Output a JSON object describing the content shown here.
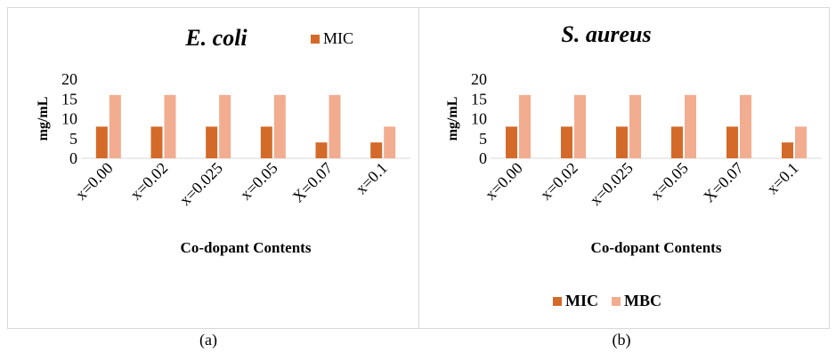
{
  "captions": [
    "(a)",
    "(b)"
  ],
  "chart_data": [
    {
      "type": "bar",
      "title": "E. coli",
      "xlabel": "Co-dopant Contents",
      "ylabel": "mg/mL",
      "categories": [
        "x=0.00",
        "x=0.02",
        "x=0.025",
        "x=0.05",
        "X=0.07",
        "x=0.1"
      ],
      "series": [
        {
          "name": "MIC",
          "values": [
            8,
            8,
            8,
            8,
            4,
            4
          ],
          "color": "#d46a2a"
        },
        {
          "name": "",
          "values": [
            16,
            16,
            16,
            16,
            16,
            8
          ],
          "color": "#f2ac8f"
        }
      ],
      "ylim": [
        0,
        20
      ],
      "yticks": [
        0,
        5,
        10,
        15,
        20
      ],
      "legend": {
        "position": "top-right",
        "entries": [
          "MIC"
        ]
      },
      "grid": false
    },
    {
      "type": "bar",
      "title": "S. aureus",
      "xlabel": "Co-dopant Contents",
      "ylabel": "mg/mL",
      "categories": [
        "x=0.00",
        "x=0.02",
        "x=0.025",
        "x=0.05",
        "X=0.07",
        "x=0.1"
      ],
      "series": [
        {
          "name": "MIC",
          "values": [
            8,
            8,
            8,
            8,
            8,
            4
          ],
          "color": "#d46a2a"
        },
        {
          "name": "MBC",
          "values": [
            16,
            16,
            16,
            16,
            16,
            8
          ],
          "color": "#f2ac8f"
        }
      ],
      "ylim": [
        0,
        20
      ],
      "yticks": [
        0,
        5,
        10,
        15,
        20
      ],
      "legend": {
        "position": "bottom",
        "entries": [
          "MIC",
          "MBC"
        ]
      },
      "grid": false
    }
  ]
}
